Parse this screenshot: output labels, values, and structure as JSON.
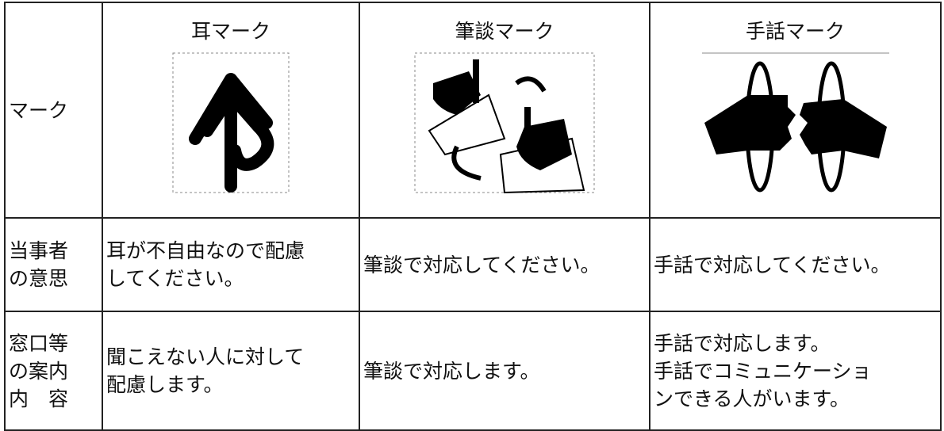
{
  "table": {
    "header": [
      "マーク",
      "耳マーク",
      "筆談マーク",
      "手話マーク"
    ],
    "rows": [
      {
        "label": [
          "当事者",
          "の意思"
        ],
        "cells": [
          [
            "耳が不自由なので配慮",
            "してください。"
          ],
          [
            "筆談で対応してください。"
          ],
          [
            "手話で対応してください。"
          ]
        ]
      },
      {
        "label": [
          "窓口等",
          "の案内",
          "内　容"
        ],
        "cells": [
          [
            "聞こえない人に対して",
            "配慮します。"
          ],
          [
            "筆談で対応します。"
          ],
          [
            "手話で対応します。",
            "手話でコミュニケーショ",
            "ンできる人がいます。"
          ]
        ]
      }
    ]
  }
}
